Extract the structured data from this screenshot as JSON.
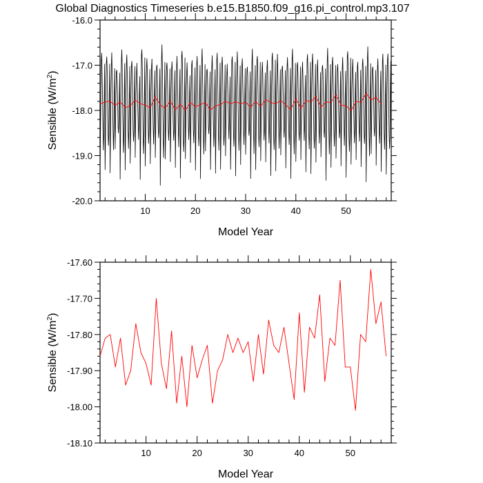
{
  "title": "Global Diagnostics Timeseries b.e15.B1850.f09_g16.pi_control.mp3.107",
  "chart_data": [
    {
      "type": "line",
      "xlabel": "Model Year",
      "ylabel_main": "Sensible (W/m",
      "ylabel_sup": "2",
      "ylabel_tail": ")",
      "xlim": [
        1,
        59
      ],
      "ylim": [
        -20.0,
        -16.0
      ],
      "xticks": [
        10,
        20,
        30,
        40,
        50
      ],
      "yticks": [
        -20.0,
        -19.0,
        -18.0,
        -17.0,
        -16.0
      ],
      "ytick_labels": [
        "-20.0",
        "-19.0",
        "-18.0",
        "-17.0",
        "-16.0"
      ],
      "series": [
        {
          "color": "#000000",
          "monthly_pattern": [
            -19.45,
            -18.6,
            -17.5,
            -16.9,
            -16.7,
            -17.1,
            -17.85,
            -18.5,
            -18.9,
            -18.55,
            -17.6,
            -16.95
          ]
        },
        {
          "color": "#ff0000",
          "values": [
            -17.86,
            -17.81,
            -17.8,
            -17.89,
            -17.81,
            -17.94,
            -17.9,
            -17.77,
            -17.85,
            -17.88,
            -17.94,
            -17.7,
            -17.88,
            -17.95,
            -17.79,
            -17.99,
            -17.86,
            -18.0,
            -17.83,
            -17.92,
            -17.87,
            -17.83,
            -17.99,
            -17.9,
            -17.87,
            -17.8,
            -17.85,
            -17.81,
            -17.85,
            -17.82,
            -17.93,
            -17.8,
            -17.91,
            -17.76,
            -17.83,
            -17.85,
            -17.78,
            -17.88,
            -17.98,
            -17.74,
            -17.96,
            -17.78,
            -17.81,
            -17.69,
            -17.93,
            -17.81,
            -17.83,
            -17.65,
            -17.89,
            -17.89,
            -18.01,
            -17.8,
            -17.82,
            -17.62,
            -17.77,
            -17.71,
            -17.86
          ]
        }
      ]
    },
    {
      "type": "line",
      "xlabel": "Model Year",
      "ylabel_main": "Sensible (W/m",
      "ylabel_sup": "2",
      "ylabel_tail": ")",
      "xlim": [
        1,
        58
      ],
      "ylim": [
        -18.1,
        -17.6
      ],
      "xticks": [
        10,
        20,
        30,
        40,
        50
      ],
      "yticks": [
        -18.1,
        -18.0,
        -17.9,
        -17.8,
        -17.7,
        -17.6
      ],
      "ytick_labels": [
        "-18.10",
        "-18.00",
        "-17.90",
        "-17.80",
        "-17.70",
        "-17.60"
      ],
      "series": [
        {
          "color": "#ff0000",
          "values": [
            -17.86,
            -17.81,
            -17.8,
            -17.89,
            -17.81,
            -17.94,
            -17.9,
            -17.77,
            -17.85,
            -17.88,
            -17.94,
            -17.7,
            -17.88,
            -17.95,
            -17.79,
            -17.99,
            -17.86,
            -18.0,
            -17.83,
            -17.92,
            -17.87,
            -17.83,
            -17.99,
            -17.9,
            -17.87,
            -17.8,
            -17.85,
            -17.81,
            -17.85,
            -17.82,
            -17.93,
            -17.8,
            -17.91,
            -17.76,
            -17.83,
            -17.85,
            -17.78,
            -17.88,
            -17.98,
            -17.74,
            -17.96,
            -17.78,
            -17.81,
            -17.69,
            -17.93,
            -17.81,
            -17.83,
            -17.65,
            -17.89,
            -17.89,
            -18.01,
            -17.8,
            -17.82,
            -17.62,
            -17.77,
            -17.71,
            -17.86
          ]
        }
      ]
    }
  ]
}
